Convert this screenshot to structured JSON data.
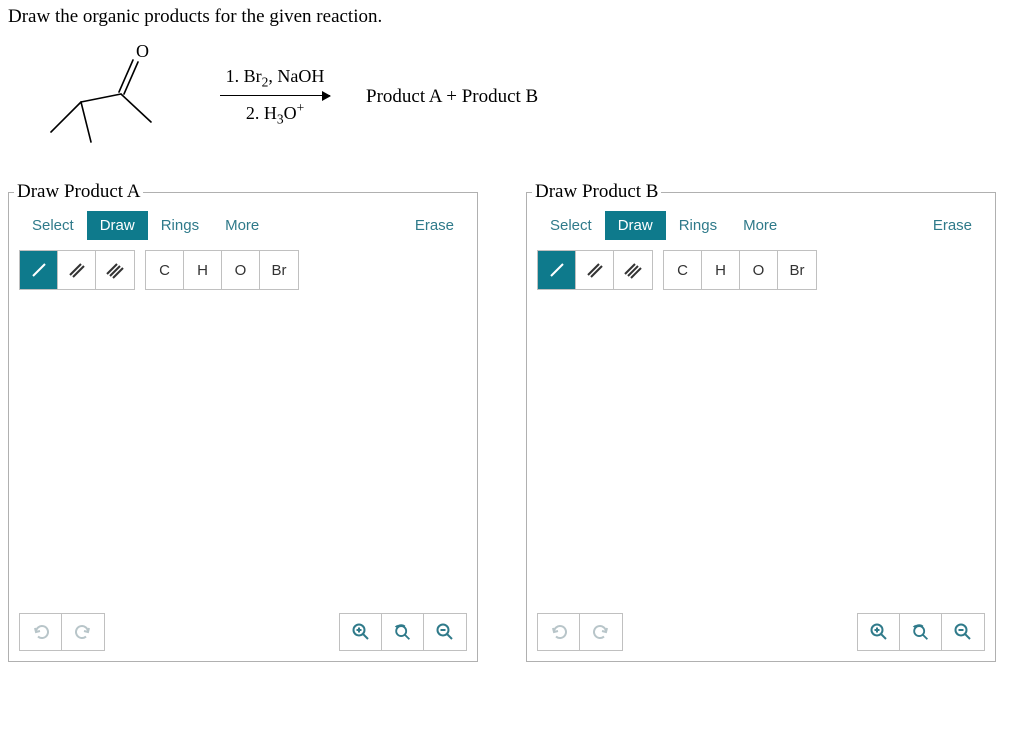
{
  "question": "Draw the organic products for the given reaction.",
  "reagents": {
    "step1_html": "1. Br<sub>2</sub>, NaOH",
    "step2_html": "2. H<sub>3</sub>O<sup>+</sup>"
  },
  "products_label": "Product A  +  Product B",
  "panels": [
    {
      "title": "Draw Product A"
    },
    {
      "title": "Draw Product B"
    }
  ],
  "tabs": {
    "select": "Select",
    "draw": "Draw",
    "rings": "Rings",
    "more": "More",
    "erase": "Erase"
  },
  "bond_tools": {
    "single": "/",
    "double": "//",
    "triple": "///"
  },
  "atoms": [
    "C",
    "H",
    "O",
    "Br"
  ],
  "colors": {
    "accent": "#0e7a8c",
    "accent_text": "#2f7a8a",
    "border": "#c0c0c0",
    "disabled": "#b8c5c9"
  }
}
